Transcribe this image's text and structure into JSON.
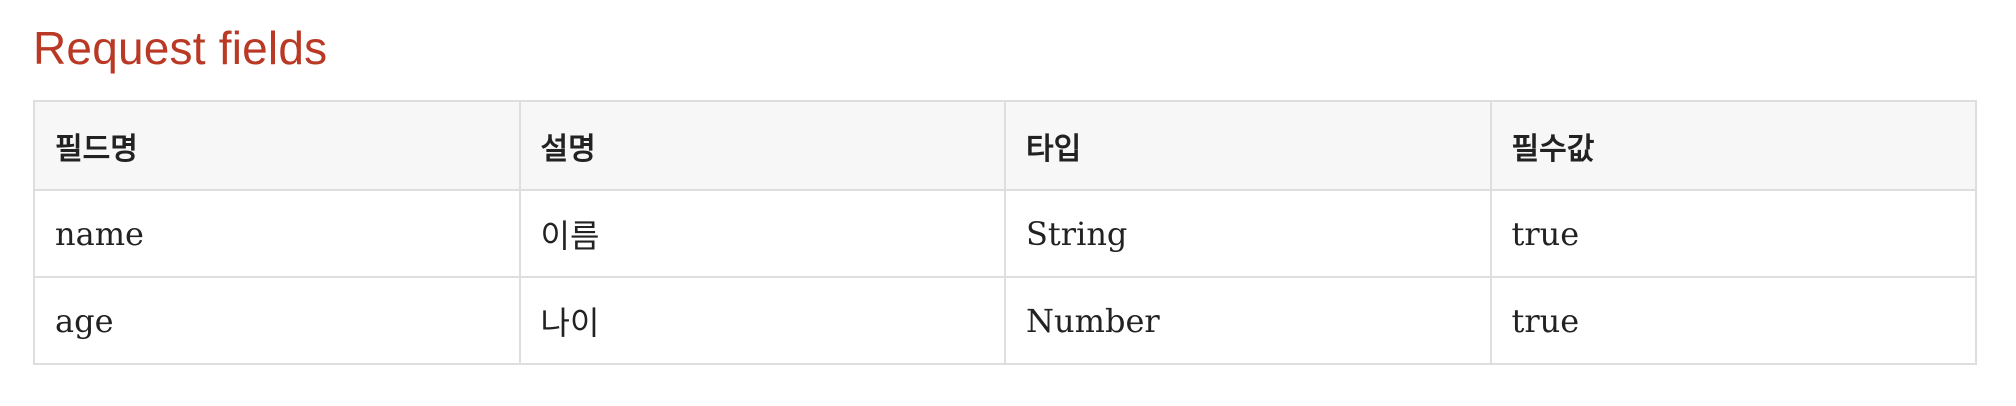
{
  "section": {
    "title": "Request fields"
  },
  "table": {
    "headers": [
      "필드명",
      "설명",
      "타입",
      "필수값"
    ],
    "rows": [
      [
        "name",
        "이름",
        "String",
        "true"
      ],
      [
        "age",
        "나이",
        "Number",
        "true"
      ]
    ]
  },
  "colors": {
    "title": "#ba3925",
    "header_bg": "#f7f7f8",
    "border": "#dedede",
    "text": "#222222"
  }
}
